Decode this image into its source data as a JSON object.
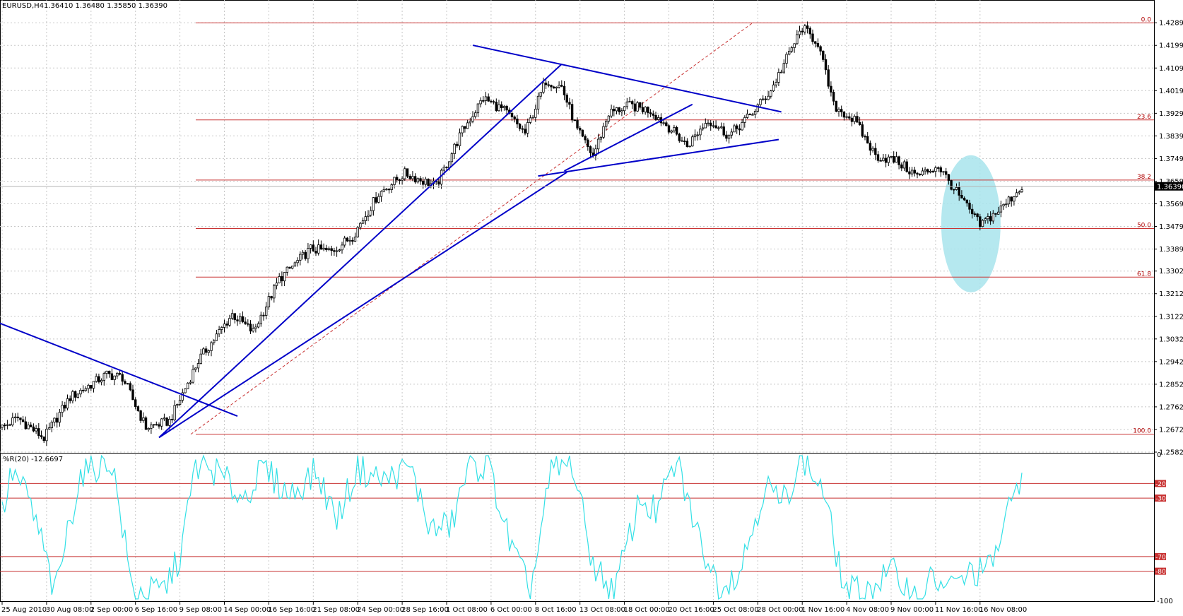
{
  "header": {
    "symbol": "EURUSD,H4",
    "ohlc": "1.36410 1.36480 1.35850 1.36390"
  },
  "indicator": {
    "label": "%R(20) -12.6697",
    "levels": [
      {
        "value": -20,
        "label": "-20"
      },
      {
        "value": -30,
        "label": "-30"
      },
      {
        "value": -70,
        "label": "-70"
      },
      {
        "value": -80,
        "label": "-80"
      }
    ],
    "axis_labels": [
      "0",
      "-100"
    ]
  },
  "colors": {
    "candle": "#000000",
    "trendline": "#0000c8",
    "fib": "#c83232",
    "wpr_line": "#33e0e6",
    "highlight": "#a8e4ec",
    "grid": "#c8c8c8",
    "current_price_bg": "#000000"
  },
  "chart_data": [
    {
      "type": "candlestick",
      "title": "EURUSD,H4",
      "ylim": [
        1.2582,
        1.4335
      ],
      "y_ticks": [
        "1.42895",
        "1.41995",
        "1.41095",
        "1.40195",
        "1.39295",
        "1.38395",
        "1.37495",
        "1.36595",
        "1.35695",
        "1.34795",
        "1.33895",
        "1.33020",
        "1.32120",
        "1.31220",
        "1.30320",
        "1.29420",
        "1.28520",
        "1.27620",
        "1.26720",
        "1.25820"
      ],
      "x_ticks": [
        "25 Aug 2010",
        "30 Aug 08:00",
        "2 Sep 00:00",
        "6 Sep 16:00",
        "9 Sep 08:00",
        "14 Sep 00:00",
        "16 Sep 16:00",
        "21 Sep 08:00",
        "24 Sep 00:00",
        "28 Sep 16:00",
        "1 Oct 08:00",
        "6 Oct 00:00",
        "8 Oct 16:00",
        "13 Oct 08:00",
        "18 Oct 00:00",
        "20 Oct 16:00",
        "25 Oct 08:00",
        "28 Oct 00:00",
        "1 Nov 16:00",
        "4 Nov 08:00",
        "9 Nov 00:00",
        "11 Nov 16:00",
        "16 Nov 08:00"
      ],
      "current_price": 1.3639,
      "current_price_label": "1.36390",
      "fibonacci": {
        "high": 1.4289,
        "low": 1.2653,
        "levels": [
          {
            "label": "0.0",
            "price": 1.4289
          },
          {
            "label": "23.6",
            "price": 1.3903
          },
          {
            "label": "38.2",
            "price": 1.3664
          },
          {
            "label": "50.0",
            "price": 1.3471
          },
          {
            "label": "61.8",
            "price": 1.3278
          },
          {
            "label": "100.0",
            "price": 1.2653
          }
        ]
      },
      "anchors": [
        [
          0,
          1.268
        ],
        [
          6,
          1.2718
        ],
        [
          16,
          1.2638
        ],
        [
          26,
          1.28
        ],
        [
          40,
          1.289
        ],
        [
          46,
          1.288
        ],
        [
          55,
          1.268
        ],
        [
          64,
          1.2705
        ],
        [
          75,
          1.2945
        ],
        [
          88,
          1.313
        ],
        [
          96,
          1.306
        ],
        [
          106,
          1.327
        ],
        [
          118,
          1.339
        ],
        [
          126,
          1.338
        ],
        [
          134,
          1.344
        ],
        [
          144,
          1.361
        ],
        [
          154,
          1.369
        ],
        [
          166,
          1.364
        ],
        [
          176,
          1.386
        ],
        [
          184,
          1.399
        ],
        [
          192,
          1.394
        ],
        [
          200,
          1.385
        ],
        [
          208,
          1.406
        ],
        [
          214,
          1.4035
        ],
        [
          220,
          1.386
        ],
        [
          226,
          1.376
        ],
        [
          232,
          1.393
        ],
        [
          240,
          1.396
        ],
        [
          248,
          1.394
        ],
        [
          256,
          1.3865
        ],
        [
          262,
          1.38
        ],
        [
          270,
          1.3905
        ],
        [
          278,
          1.384
        ],
        [
          286,
          1.392
        ],
        [
          294,
          1.402
        ],
        [
          302,
          1.4189
        ],
        [
          306,
          1.4269
        ],
        [
          312,
          1.421
        ],
        [
          318,
          1.396
        ],
        [
          326,
          1.39
        ],
        [
          334,
          1.376
        ],
        [
          342,
          1.374
        ],
        [
          350,
          1.368
        ],
        [
          358,
          1.372
        ],
        [
          366,
          1.36
        ],
        [
          374,
          1.3485
        ],
        [
          382,
          1.355
        ],
        [
          390,
          1.3639
        ]
      ]
    },
    {
      "type": "line",
      "title": "%R(20) -12.6697",
      "ylim": [
        -100,
        0
      ],
      "series": [
        {
          "name": "%R(20)",
          "anchors": [
            [
              0,
              -40
            ],
            [
              4,
              -12
            ],
            [
              10,
              -30
            ],
            [
              16,
              -65
            ],
            [
              20,
              -97
            ],
            [
              26,
              -45
            ],
            [
              30,
              -14
            ],
            [
              36,
              -8
            ],
            [
              42,
              -5
            ],
            [
              50,
              -95
            ],
            [
              56,
              -95
            ],
            [
              62,
              -92
            ],
            [
              68,
              -70
            ],
            [
              74,
              -8
            ],
            [
              82,
              -12
            ],
            [
              92,
              -30
            ],
            [
              100,
              -10
            ],
            [
              110,
              -28
            ],
            [
              120,
              -12
            ],
            [
              128,
              -44
            ],
            [
              136,
              -10
            ],
            [
              146,
              -18
            ],
            [
              156,
              -9
            ],
            [
              164,
              -52
            ],
            [
              172,
              -48
            ],
            [
              178,
              -10
            ],
            [
              186,
              -7
            ],
            [
              194,
              -60
            ],
            [
              202,
              -95
            ],
            [
              210,
              -12
            ],
            [
              218,
              -6
            ],
            [
              226,
              -75
            ],
            [
              234,
              -95
            ],
            [
              244,
              -30
            ],
            [
              250,
              -40
            ],
            [
              258,
              -5
            ],
            [
              266,
              -55
            ],
            [
              274,
              -90
            ],
            [
              282,
              -80
            ],
            [
              292,
              -20
            ],
            [
              298,
              -35
            ],
            [
              306,
              -3
            ],
            [
              314,
              -25
            ],
            [
              322,
              -92
            ],
            [
              330,
              -95
            ],
            [
              340,
              -80
            ],
            [
              350,
              -98
            ],
            [
              356,
              -85
            ],
            [
              362,
              -92
            ],
            [
              370,
              -82
            ],
            [
              378,
              -78
            ],
            [
              384,
              -45
            ],
            [
              390,
              -12.67
            ]
          ]
        }
      ]
    }
  ]
}
